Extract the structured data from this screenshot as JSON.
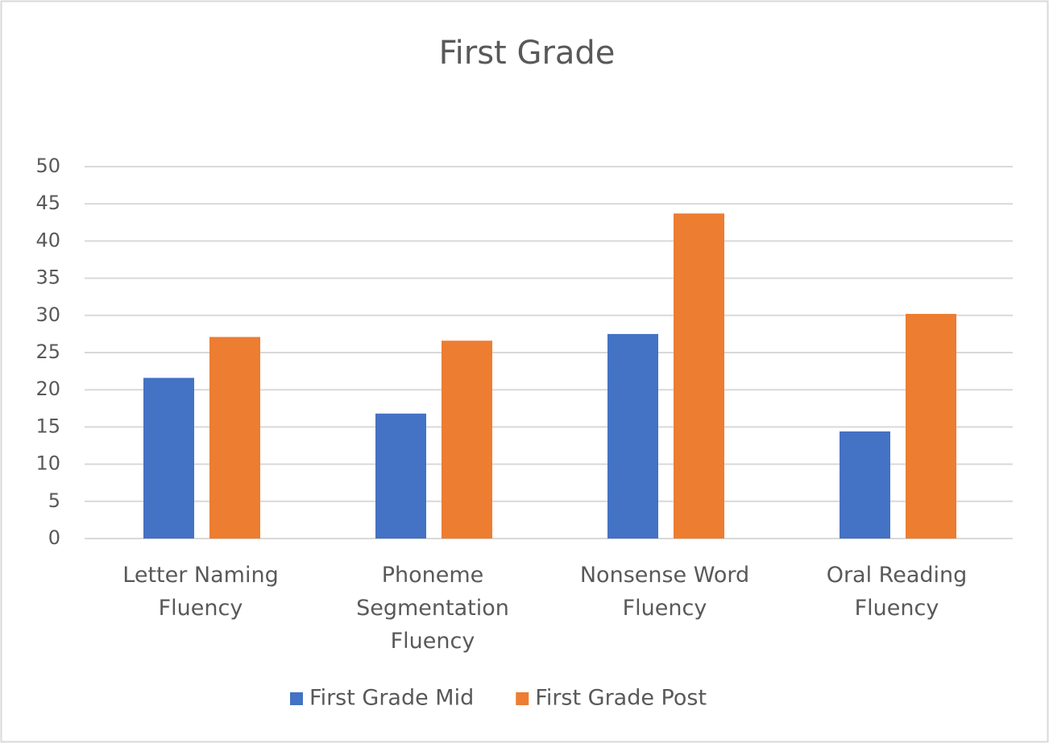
{
  "chart_data": {
    "type": "bar",
    "title": "First Grade",
    "categories": [
      "Letter Naming Fluency",
      "Phoneme Segmentation Fluency",
      "Nonsense Word Fluency",
      "Oral Reading Fluency"
    ],
    "series": [
      {
        "name": "First Grade Mid",
        "color": "#4472c4",
        "values": [
          21.6,
          16.8,
          27.5,
          14.4
        ]
      },
      {
        "name": "First Grade Post",
        "color": "#ed7d31",
        "values": [
          27.1,
          26.6,
          43.7,
          30.2
        ]
      }
    ],
    "ylim": [
      0,
      50
    ],
    "yticks": [
      0,
      5,
      10,
      15,
      20,
      25,
      30,
      35,
      40,
      45,
      50
    ],
    "grid": true,
    "legend": "bottom"
  }
}
